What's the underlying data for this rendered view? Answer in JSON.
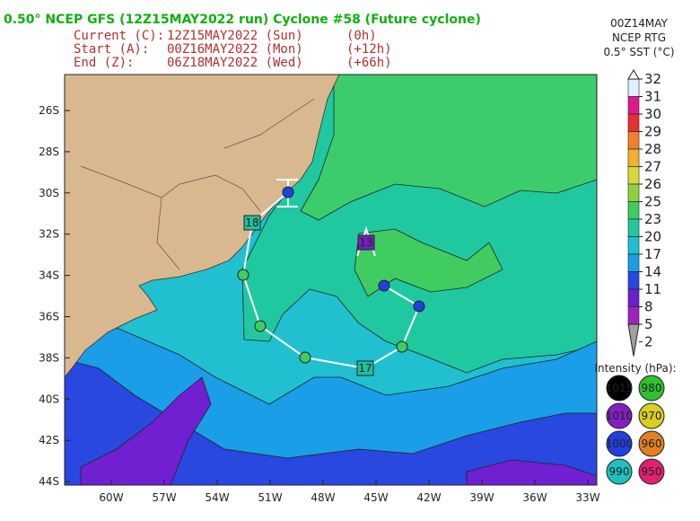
{
  "header": {
    "title": "0.50° NCEP GFS (12Z15MAY2022 run) Cyclone #58 (Future cyclone)",
    "rows": [
      [
        "Current (C):",
        "12Z15MAY2022 (Sun)",
        "(0h)"
      ],
      [
        "Start (A):",
        "00Z16MAY2022 (Mon)",
        "(+12h)"
      ],
      [
        "End (Z):",
        "06Z18MAY2022 (Wed)",
        "(+66h)"
      ]
    ]
  },
  "sst": {
    "lines": [
      "00Z14MAY",
      "NCEP RTG",
      "0.5° SST (°C)"
    ],
    "scale": [
      {
        "label": "32",
        "color": "#ffffff"
      },
      {
        "label": "31",
        "color": "#e0f0ff"
      },
      {
        "label": "30",
        "color": "#e0198a"
      },
      {
        "label": "29",
        "color": "#e83030"
      },
      {
        "label": "28",
        "color": "#f08030"
      },
      {
        "label": "27",
        "color": "#f0b030"
      },
      {
        "label": "26",
        "color": "#d8d838"
      },
      {
        "label": "25",
        "color": "#90d040"
      },
      {
        "label": "23",
        "color": "#40cc60"
      },
      {
        "label": "20",
        "color": "#20c8a0"
      },
      {
        "label": "17",
        "color": "#20c0d0"
      },
      {
        "label": "14",
        "color": "#1a9ee8"
      },
      {
        "label": "11",
        "color": "#2848e0"
      },
      {
        "label": "8",
        "color": "#6a20d0"
      },
      {
        "label": "5",
        "color": "#a020c0"
      },
      {
        "label": "2",
        "color": "#a0a0a0"
      }
    ]
  },
  "intensity": {
    "title": "Intensity (hPa):",
    "items": [
      {
        "label": "1015",
        "color": "#000000"
      },
      {
        "label": "980",
        "color": "#30c030"
      },
      {
        "label": "1010",
        "color": "#8020c0"
      },
      {
        "label": "970",
        "color": "#d8d020"
      },
      {
        "label": "1000",
        "color": "#2040e0"
      },
      {
        "label": "960",
        "color": "#e08020"
      },
      {
        "label": "990",
        "color": "#20c0c0"
      },
      {
        "label": "950",
        "color": "#e02070"
      }
    ]
  },
  "map": {
    "lat_labels": [
      "26S",
      "28S",
      "30S",
      "32S",
      "34S",
      "36S",
      "38S",
      "40S",
      "42S",
      "44S"
    ],
    "lon_labels": [
      "60W",
      "57W",
      "54W",
      "51W",
      "48W",
      "45W",
      "42W",
      "39W",
      "36W",
      "33W"
    ],
    "track_labels": [
      "18",
      "17",
      "13"
    ]
  }
}
